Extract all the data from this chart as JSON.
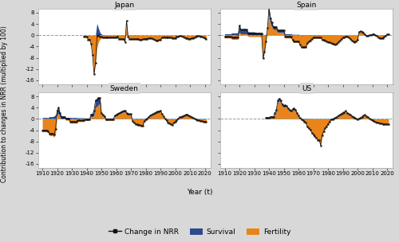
{
  "countries_grid": [
    [
      "Japan",
      "Spain"
    ],
    [
      "Sweden",
      "US"
    ]
  ],
  "survival_color": "#2c4a8c",
  "fertility_color": "#e8841a",
  "nrr_line_color": "#111111",
  "panel_title_bg": "#d8d8d8",
  "fig_bg": "#d8d8d8",
  "plot_bg": "#ffffff",
  "title_fontsize": 6.5,
  "tick_fontsize": 5.0,
  "ylabel_fontsize": 5.5,
  "xlabel_fontsize": 6.5,
  "legend_fontsize": 6.5,
  "ylabel": "Contribution to changes in NRR (multiplied by 100)",
  "xlabel": "Year (t)",
  "legend_labels": [
    "Change in NRR",
    "Survival",
    "Fertility"
  ],
  "xlim": [
    1907,
    2024
  ],
  "xticks": [
    1910,
    1920,
    1930,
    1940,
    1950,
    1960,
    1970,
    1980,
    1990,
    2000,
    2010,
    2020
  ],
  "yticks": [
    -16,
    -12,
    -8,
    -4,
    0,
    4,
    8
  ],
  "ylim": [
    -17.5,
    9.5
  ]
}
